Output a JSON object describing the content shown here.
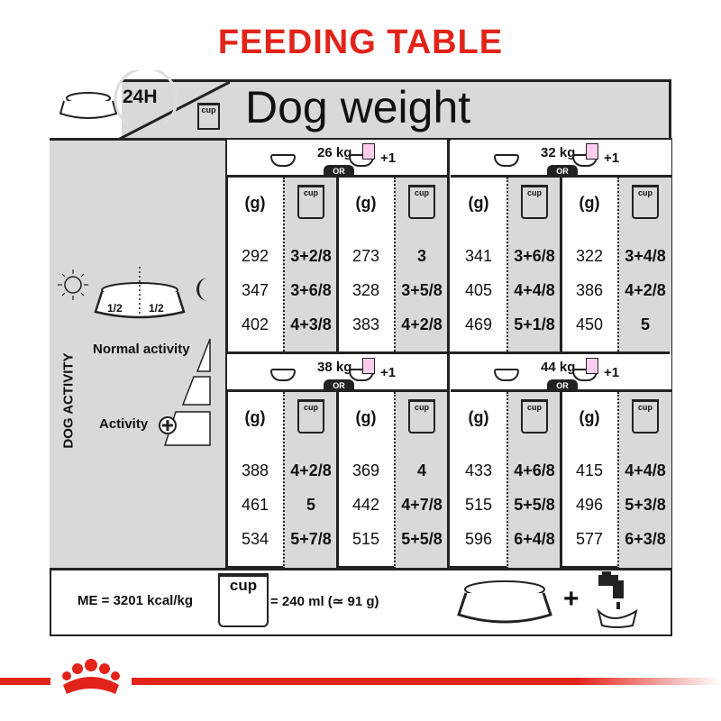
{
  "title": "FEEDING TABLE",
  "header": {
    "period": "24H",
    "cup_label": "cup",
    "column_title": "Dog weight"
  },
  "left_panel": {
    "half_left": "1/2",
    "half_right": "1/2",
    "dog_activity": "DOG ACTIVITY",
    "normal_activity": "Normal activity",
    "activity": "Activity"
  },
  "table": {
    "g_header": "(g)",
    "cup_header": "cup",
    "or_label": "OR",
    "plus_label": "+1",
    "blocks": [
      {
        "weight": "26 kg",
        "dry": {
          "g": [
            "292",
            "347",
            "402"
          ],
          "cups": [
            "3+2/8",
            "3+6/8",
            "4+3/8"
          ]
        },
        "mixed": {
          "g": [
            "273",
            "328",
            "383"
          ],
          "cups": [
            "3",
            "3+5/8",
            "4+2/8"
          ]
        }
      },
      {
        "weight": "32 kg",
        "dry": {
          "g": [
            "341",
            "405",
            "469"
          ],
          "cups": [
            "3+6/8",
            "4+4/8",
            "5+1/8"
          ]
        },
        "mixed": {
          "g": [
            "322",
            "386",
            "450"
          ],
          "cups": [
            "3+4/8",
            "4+2/8",
            "5"
          ]
        }
      },
      {
        "weight": "38 kg",
        "dry": {
          "g": [
            "388",
            "461",
            "534"
          ],
          "cups": [
            "4+2/8",
            "5",
            "5+7/8"
          ]
        },
        "mixed": {
          "g": [
            "369",
            "442",
            "515"
          ],
          "cups": [
            "4",
            "4+7/8",
            "5+5/8"
          ]
        }
      },
      {
        "weight": "44 kg",
        "dry": {
          "g": [
            "433",
            "515",
            "596"
          ],
          "cups": [
            "4+6/8",
            "5+5/8",
            "6+4/8"
          ]
        },
        "mixed": {
          "g": [
            "415",
            "496",
            "577"
          ],
          "cups": [
            "4+4/8",
            "5+3/8",
            "6+3/8"
          ]
        }
      }
    ]
  },
  "footer": {
    "me": "ME = 3201 kcal/kg",
    "cup_label": "cup",
    "cup_equiv": "= 240 ml (≃ 91 g)",
    "plus": "+"
  },
  "colors": {
    "brand_red": "#e2231a",
    "panel_gray": "#d9d9d9"
  }
}
